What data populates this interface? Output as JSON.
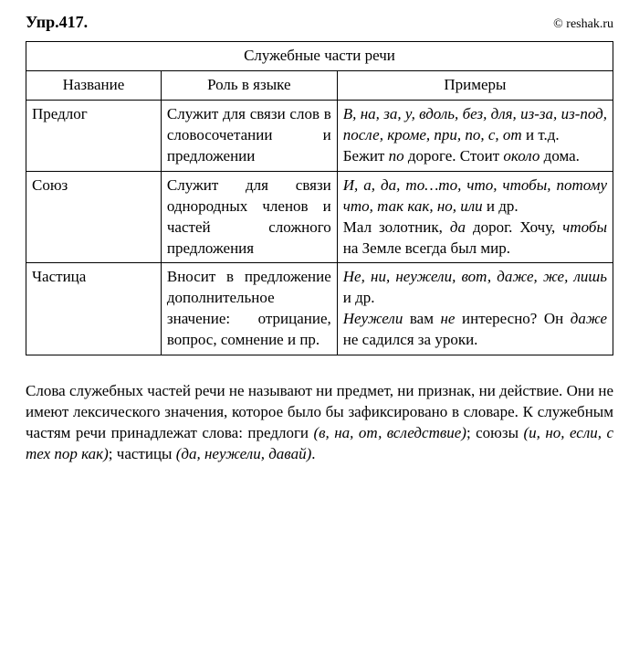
{
  "header": {
    "exercise": "Упр.417.",
    "site": "© reshak.ru"
  },
  "table": {
    "title": "Служебные части речи",
    "columns": [
      "Название",
      "Роль в языке",
      "Примеры"
    ],
    "rows": [
      {
        "name": "Предлог",
        "role": "Служит для связи слов в словосочетании и предложении",
        "examples_html": "<span class=\"italic\">В, на, за, у, вдоль, без, для, из-за, из-под, после, кроме, при, по, с, от</span> и т.д.<br>Бежит <span class=\"italic\">по</span> дороге. Стоит <span class=\"italic\">около</span> дома."
      },
      {
        "name": "Союз",
        "role": "Служит для связи однородных членов и частей сложного предложения",
        "examples_html": "<span class=\"italic\">И, а, да, то…то, что, чтобы, потому что, так как, но, или</span> и др.<br>Мал золотник, <span class=\"italic\">да</span> дорог. Хочу, <span class=\"italic\">чтобы</span> на Земле всегда был мир."
      },
      {
        "name": "Частица",
        "role": "Вносит в предложение дополнительное значение: отрицание, вопрос, сомнение и пр.",
        "examples_html": "<span class=\"italic\">Не, ни, неужели, вот, даже, же, лишь</span> и др.<br><span class=\"italic\">Неужели</span> вам <span class=\"italic\">не</span> интересно? Он <span class=\"italic\">даже</span> не садился за уроки."
      }
    ]
  },
  "footer_html": "Слова служебных частей речи не называют ни предмет, ни признак, ни действие. Они не имеют лексического значения, которое было бы зафиксировано в словаре. К служебным частям речи принадлежат слова: предлоги <span class=\"italic\">(в, на, от, вследствие)</span>; союзы <span class=\"italic\">(и, но, если, с тех пор как)</span>; частицы <span class=\"italic\">(да, неужели, давай)</span>."
}
